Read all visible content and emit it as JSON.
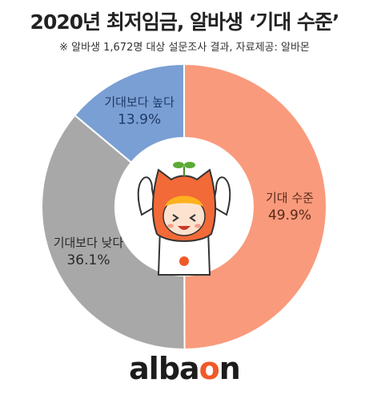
{
  "title": "2020년 최저임금, 알바생 ‘기대 수준’",
  "subtitle": "※ 알바생 1,672명 대상 설문조사 결과, 자료제공: 알바몬",
  "logo": {
    "before": "alba",
    "accent": "o",
    "after": "n",
    "accent_color": "#f05a28"
  },
  "chart_data": {
    "type": "pie",
    "title": "2020년 최저임금, 알바생 ‘기대 수준’",
    "categories": [
      "기대 수준",
      "기대보다 낮다",
      "기대보다 높다"
    ],
    "values": [
      49.9,
      36.1,
      13.9
    ],
    "labels": [
      "49.9%",
      "36.1%",
      "13.9%"
    ],
    "colors": [
      "#f99a7c",
      "#a8a8a8",
      "#7a9fd4"
    ],
    "label_colors": [
      "#5a2a1a",
      "#2a2a2a",
      "#1e3a66"
    ],
    "donut": true
  }
}
